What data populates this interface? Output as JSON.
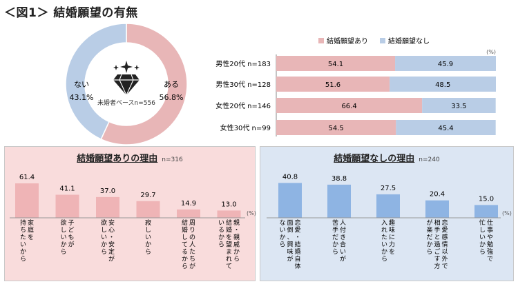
{
  "figure_title": "＜図1＞ 結婚願望の有無",
  "colors": {
    "pink": "#e8b6b7",
    "blue": "#b9cde6",
    "pink_bar": "#efb4b6",
    "blue_bar": "#8eb4e3"
  },
  "icon": "diamond-icon",
  "chart_data": [
    {
      "id": "donut",
      "type": "pie",
      "center_label": "未婚者ベースn=556",
      "slices": [
        {
          "label": "ある",
          "value": 56.8,
          "value_text": "56.8%"
        },
        {
          "label": "ない",
          "value": 43.1,
          "value_text": "43.1%"
        }
      ]
    },
    {
      "id": "stacked",
      "type": "bar",
      "orientation": "horizontal-stacked-100",
      "unit": "(%)",
      "legend": [
        "結婚願望あり",
        "結婚願望なし"
      ],
      "categories": [
        "男性20代 n=183",
        "男性30代 n=128",
        "女性20代 n=146",
        "女性30代 n=99"
      ],
      "series": [
        {
          "name": "結婚願望あり",
          "values": [
            54.1,
            51.6,
            66.4,
            54.5
          ]
        },
        {
          "name": "結婚願望なし",
          "values": [
            45.9,
            48.5,
            33.5,
            45.4
          ]
        }
      ]
    },
    {
      "id": "reasons_yes",
      "type": "bar",
      "title": "結婚願望ありの理由",
      "n_label": "n=316",
      "unit": "(%)",
      "ylim": [
        0,
        70
      ],
      "categories": [
        "家庭を持ちたいから",
        "子どもが欲しいから",
        "安心・安定が欲しいから",
        "寂しいから",
        "周りの人たちが結婚してるから",
        "親・親戚から結婚を望まれているから"
      ],
      "label_lines": [
        [
          "家庭を",
          "持ちたいから"
        ],
        [
          "子どもが",
          "欲しいから"
        ],
        [
          "安心・安定が",
          "欲しいから"
        ],
        [
          "寂しいから"
        ],
        [
          "周りの人たちが",
          "結婚してるから"
        ],
        [
          "親・親戚から",
          "結婚を望まれて",
          "いるから"
        ]
      ],
      "values": [
        61.4,
        41.1,
        37.0,
        29.7,
        14.9,
        13.0
      ]
    },
    {
      "id": "reasons_no",
      "type": "bar",
      "title": "結婚願望なしの理由",
      "n_label": "n=240",
      "unit": "(%)",
      "ylim": [
        0,
        50
      ],
      "categories": [
        "恋愛・結婚自体面倒、興味がないから",
        "人付き合いが苦手だから",
        "趣味に力を入れたいから",
        "恋愛感情以外で相手と過ごす方が楽だから",
        "仕事や勉強で忙しいから"
      ],
      "label_lines": [
        [
          "恋愛・結婚自体",
          "面倒、興味が",
          "ないから"
        ],
        [
          "人付き合いが",
          "苦手だから"
        ],
        [
          "趣味に力を",
          "入れたいから"
        ],
        [
          "恋愛感情以外で",
          "相手と過ごす方",
          "が楽だから"
        ],
        [
          "仕事や勉強で",
          "忙しいから"
        ]
      ],
      "values": [
        40.8,
        38.8,
        27.5,
        20.4,
        15.0
      ]
    }
  ]
}
